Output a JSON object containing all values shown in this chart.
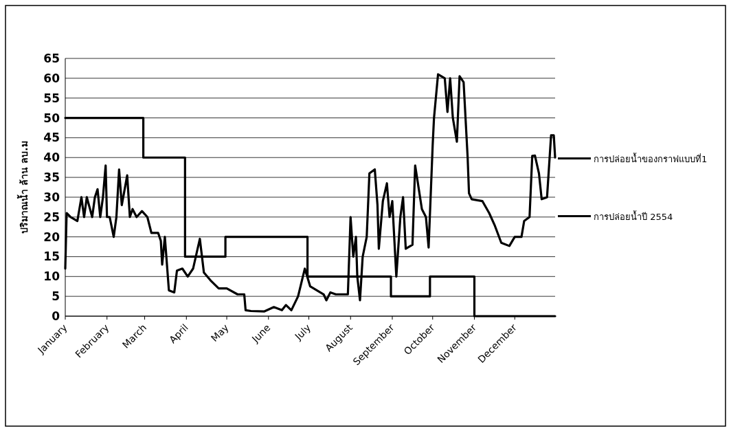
{
  "chart_data": {
    "type": "line",
    "ylabel": "ปริมาณน้ำ ล้าน ลบ.ม",
    "xlim": [
      "--01-01",
      "--12-31"
    ],
    "ylim": [
      0,
      65
    ],
    "xticks": [
      {
        "value": "--01-01",
        "label": "January"
      },
      {
        "value": "--02-01",
        "label": "February"
      },
      {
        "value": "--03-01",
        "label": "March"
      },
      {
        "value": "--04-01",
        "label": "April"
      },
      {
        "value": "--05-01",
        "label": "May"
      },
      {
        "value": "--06-01",
        "label": "June"
      },
      {
        "value": "--07-01",
        "label": "July"
      },
      {
        "value": "--08-01",
        "label": "August"
      },
      {
        "value": "--09-01",
        "label": "September"
      },
      {
        "value": "--10-01",
        "label": "October"
      },
      {
        "value": "--11-01",
        "label": "November"
      },
      {
        "value": "--12-01",
        "label": "December"
      }
    ],
    "yticks": [
      0,
      5,
      10,
      15,
      20,
      25,
      30,
      35,
      40,
      45,
      50,
      55,
      60,
      65
    ],
    "grid": "y",
    "legend": "right",
    "series": [
      {
        "name": "การปล่อยน้ำของกราฟแบบที่1",
        "type": "step",
        "color": "#000000",
        "x": [
          "--01-01",
          "--02-28",
          "--03-31",
          "--04-30",
          "--06-30",
          "--08-31",
          "--09-29",
          "--11-01",
          "--12-31"
        ],
        "values": [
          50,
          40,
          15,
          20,
          10,
          5,
          10,
          0,
          0
        ]
      },
      {
        "name": "การปล่อยน้ำปี 2554",
        "color": "#000000",
        "x": [
          "--01-01",
          "--01-02",
          "--01-05",
          "--01-10",
          "--01-13",
          "--01-15",
          "--01-17",
          "--01-21",
          "--01-23",
          "--01-25",
          "--01-27",
          "--01-29",
          "--01-31",
          "--02-01",
          "--02-03",
          "--02-06",
          "--02-08",
          "--02-10",
          "--02-12",
          "--02-16",
          "--02-18",
          "--02-20",
          "--02-23",
          "--02-27",
          "--03-03",
          "--03-06",
          "--03-11",
          "--03-13",
          "--03-14",
          "--03-16",
          "--03-19",
          "--03-23",
          "--03-25",
          "--03-29",
          "--04-02",
          "--04-06",
          "--04-11",
          "--04-14",
          "--04-19",
          "--04-25",
          "--05-01",
          "--05-09",
          "--05-14",
          "--05-15",
          "--05-19",
          "--05-29",
          "--06-05",
          "--06-11",
          "--06-14",
          "--06-18",
          "--06-23",
          "--06-28",
          "--07-02",
          "--07-12",
          "--07-14",
          "--07-17",
          "--07-21",
          "--07-30",
          "--08-01",
          "--08-03",
          "--08-05",
          "--08-06",
          "--08-08",
          "--08-10",
          "--08-13",
          "--08-15",
          "--08-19",
          "--08-21",
          "--08-22",
          "--08-25",
          "--08-28",
          "--08-30",
          "--09-01",
          "--09-04",
          "--09-07",
          "--09-09",
          "--09-11",
          "--09-16",
          "--09-18",
          "--09-23",
          "--09-26",
          "--09-28",
          "--10-01",
          "--10-02",
          "--10-05",
          "--10-10",
          "--10-12",
          "--10-14",
          "--10-16",
          "--10-19",
          "--10-21",
          "--10-24",
          "--10-27",
          "--10-28",
          "--10-30",
          "--11-07",
          "--11-12",
          "--11-16",
          "--11-21",
          "--11-27",
          "--12-01",
          "--12-06",
          "--12-08",
          "--12-12",
          "--12-14",
          "--12-16",
          "--12-19",
          "--12-21",
          "--12-25",
          "--12-28",
          "--12-30",
          "--12-31"
        ],
        "values": [
          12,
          26,
          25,
          24,
          30,
          25,
          30,
          25,
          30,
          32,
          25,
          30,
          38,
          25,
          25,
          20,
          25,
          37,
          28,
          35.5,
          25,
          27,
          25,
          26.5,
          25,
          21,
          21,
          19,
          13,
          20,
          6.5,
          6,
          11.5,
          12,
          10,
          12,
          19.5,
          11,
          9,
          7,
          7,
          5.5,
          5.5,
          1.5,
          1.3,
          1.2,
          2.3,
          1.5,
          2.8,
          1.5,
          5,
          12,
          7.5,
          5.5,
          4,
          6,
          5.5,
          5.5,
          25,
          15,
          20,
          10,
          4,
          15,
          20,
          36,
          37,
          28,
          17,
          29,
          33.5,
          25,
          29,
          10,
          25,
          30,
          17,
          18,
          38,
          27,
          25,
          17.3,
          43,
          50,
          61,
          60,
          51.5,
          60,
          50,
          44,
          60.5,
          59,
          40,
          31,
          29.5,
          29,
          26,
          23,
          18.5,
          17.7,
          20,
          20,
          24,
          25,
          40.4,
          40.5,
          36,
          29.5,
          30,
          45.6,
          45.6,
          40
        ]
      }
    ]
  }
}
